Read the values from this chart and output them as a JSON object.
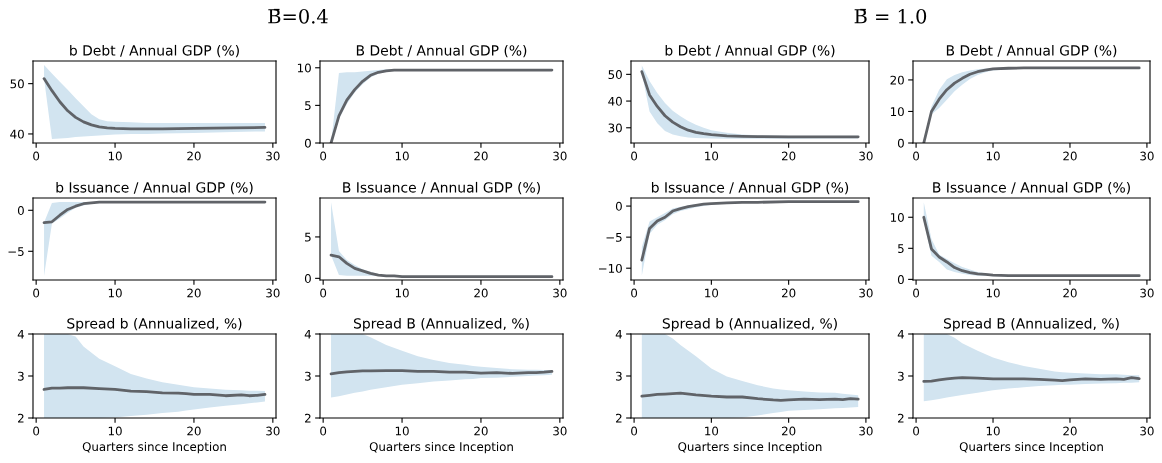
{
  "chart_data": [
    {
      "type": "line",
      "title": "b Debt / Annual GDP (%)",
      "annotations": [
        "B̄=0.4"
      ],
      "x": [
        1,
        2,
        3,
        4,
        5,
        6,
        7,
        8,
        9,
        10,
        12,
        14,
        16,
        20,
        25,
        29
      ],
      "xlim": [
        -0.4,
        30.4
      ],
      "xticks": [
        0,
        10,
        20,
        30
      ],
      "ylim": [
        38.2,
        54.5
      ],
      "yticks": [
        40,
        50
      ],
      "series": [
        {
          "color": "#606368",
          "values": [
            51.0,
            48.6,
            46.4,
            44.6,
            43.3,
            42.4,
            41.8,
            41.4,
            41.2,
            41.1,
            41.0,
            41.0,
            41.0,
            41.1,
            41.2,
            41.3
          ],
          "upper": [
            53.7,
            52.0,
            50.4,
            48.8,
            47.1,
            45.5,
            43.9,
            42.9,
            42.5,
            42.4,
            42.3,
            42.2,
            42.2,
            42.2,
            42.2,
            42.2
          ],
          "lower": [
            51.0,
            39.0,
            39.1,
            39.2,
            39.4,
            39.5,
            39.6,
            39.7,
            39.8,
            39.9,
            40.0,
            40.0,
            40.1,
            40.2,
            40.4,
            40.5
          ]
        }
      ]
    },
    {
      "type": "line",
      "title": "B Debt / Annual GDP (%)",
      "x": [
        1,
        2,
        3,
        4,
        5,
        6,
        7,
        8,
        9,
        10,
        12,
        14,
        16,
        20,
        25,
        29
      ],
      "xlim": [
        -0.4,
        30.4
      ],
      "xticks": [
        0,
        10,
        20,
        30
      ],
      "ylim": [
        0,
        10.9
      ],
      "yticks": [
        0,
        5,
        10
      ],
      "series": [
        {
          "color": "#606368",
          "values": [
            0,
            3.6,
            5.7,
            7.1,
            8.2,
            9.0,
            9.4,
            9.6,
            9.7,
            9.7,
            9.7,
            9.7,
            9.7,
            9.7,
            9.7,
            9.7
          ],
          "upper": [
            0,
            9.3,
            9.4,
            9.4,
            9.5,
            9.6,
            9.7,
            9.8,
            9.8,
            9.8,
            9.8,
            9.8,
            9.8,
            9.8,
            9.8,
            9.8
          ],
          "lower": [
            0,
            3.2,
            5.2,
            6.7,
            7.8,
            8.7,
            9.2,
            9.5,
            9.6,
            9.6,
            9.6,
            9.6,
            9.6,
            9.6,
            9.6,
            9.6
          ]
        }
      ]
    },
    {
      "type": "line",
      "title": "b Debt / Annual GDP (%)",
      "annotations": [
        "B̄ = 1.0"
      ],
      "x": [
        1,
        2,
        3,
        4,
        5,
        6,
        7,
        8,
        9,
        10,
        12,
        14,
        16,
        20,
        25,
        29
      ],
      "xlim": [
        -0.4,
        30.4
      ],
      "xticks": [
        0,
        10,
        20,
        30
      ],
      "ylim": [
        24.3,
        55.0
      ],
      "yticks": [
        30,
        40,
        50
      ],
      "series": [
        {
          "color": "#606368",
          "values": [
            51.0,
            42.3,
            38.0,
            34.5,
            32.1,
            30.4,
            29.1,
            28.3,
            27.8,
            27.4,
            27.0,
            26.8,
            26.7,
            26.6,
            26.6,
            26.6
          ],
          "upper": [
            53.3,
            47.5,
            43.0,
            39.3,
            36.4,
            34.3,
            32.5,
            31.1,
            30.0,
            29.1,
            28.1,
            27.5,
            27.2,
            27.0,
            27.0,
            27.0
          ],
          "lower": [
            50.5,
            36.1,
            31.7,
            28.8,
            27.5,
            26.8,
            26.4,
            26.2,
            26.1,
            26.0,
            25.9,
            25.9,
            25.9,
            25.9,
            26.0,
            26.0
          ]
        }
      ]
    },
    {
      "type": "line",
      "title": "B Debt / Annual GDP (%)",
      "x": [
        1,
        2,
        3,
        4,
        5,
        6,
        7,
        8,
        9,
        10,
        12,
        14,
        16,
        20,
        25,
        29
      ],
      "xlim": [
        -0.4,
        30.4
      ],
      "xticks": [
        0,
        10,
        20,
        30
      ],
      "ylim": [
        0,
        26.0
      ],
      "yticks": [
        0,
        10,
        20
      ],
      "series": [
        {
          "color": "#606368",
          "values": [
            0,
            10.0,
            13.9,
            16.9,
            19.0,
            20.5,
            21.8,
            22.6,
            23.1,
            23.5,
            23.7,
            23.8,
            23.8,
            23.8,
            23.8,
            23.8
          ],
          "upper": [
            0,
            11.6,
            16.9,
            20.2,
            21.6,
            22.4,
            23.0,
            23.4,
            23.6,
            23.8,
            24.0,
            24.0,
            24.0,
            24.0,
            24.0,
            24.0
          ],
          "lower": [
            0,
            9.0,
            11.1,
            13.7,
            16.4,
            18.5,
            20.3,
            21.6,
            22.4,
            23.0,
            23.4,
            23.6,
            23.6,
            23.6,
            23.6,
            23.6
          ]
        }
      ]
    },
    {
      "type": "line",
      "title": "b Issuance / Annual GDP (%)",
      "x": [
        1,
        2,
        3,
        4,
        5,
        6,
        7,
        8,
        9,
        10,
        12,
        14,
        16,
        20,
        25,
        29
      ],
      "xlim": [
        -0.4,
        30.4
      ],
      "xticks": [
        0,
        10,
        20,
        30
      ],
      "ylim": [
        -8.5,
        1.5
      ],
      "yticks": [
        -5,
        0
      ],
      "series": [
        {
          "color": "#606368",
          "values": [
            -1.5,
            -1.4,
            -0.6,
            0.1,
            0.5,
            0.8,
            0.9,
            1.0,
            1.0,
            1.0,
            1.0,
            1.0,
            1.0,
            1.0,
            1.0,
            1.0
          ],
          "upper": [
            -1.5,
            0.9,
            1.0,
            1.0,
            1.0,
            1.0,
            1.0,
            1.0,
            1.0,
            1.0,
            1.0,
            1.0,
            1.0,
            1.0,
            1.0,
            1.0
          ],
          "lower": [
            -8.0,
            -1.6,
            -1.0,
            -0.3,
            0.3,
            0.6,
            0.8,
            0.9,
            0.9,
            0.9,
            0.9,
            0.9,
            0.9,
            0.9,
            0.9,
            0.9
          ]
        }
      ]
    },
    {
      "type": "line",
      "title": "B Issuance / Annual GDP (%)",
      "x": [
        1,
        2,
        3,
        4,
        5,
        6,
        7,
        8,
        9,
        10,
        12,
        14,
        16,
        20,
        25,
        29
      ],
      "xlim": [
        -0.4,
        30.4
      ],
      "xticks": [
        0,
        10,
        20,
        30
      ],
      "ylim": [
        -0.2,
        9.7
      ],
      "yticks": [
        0,
        5
      ],
      "series": [
        {
          "color": "#606368",
          "values": [
            2.8,
            2.6,
            1.8,
            1.2,
            0.9,
            0.6,
            0.4,
            0.3,
            0.3,
            0.2,
            0.2,
            0.2,
            0.2,
            0.2,
            0.2,
            0.2
          ],
          "upper": [
            9.2,
            3.3,
            2.2,
            1.6,
            1.1,
            0.8,
            0.5,
            0.4,
            0.3,
            0.3,
            0.3,
            0.3,
            0.3,
            0.3,
            0.3,
            0.3
          ],
          "lower": [
            2.8,
            0.4,
            0.3,
            0.3,
            0.3,
            0.3,
            0.3,
            0.2,
            0.2,
            0.2,
            0.2,
            0.2,
            0.2,
            0.2,
            0.2,
            0.2
          ]
        }
      ]
    },
    {
      "type": "line",
      "title": "b Issuance / Annual GDP (%)",
      "x": [
        1,
        2,
        3,
        4,
        5,
        6,
        7,
        8,
        9,
        10,
        12,
        14,
        16,
        20,
        25,
        29
      ],
      "xlim": [
        -0.4,
        30.4
      ],
      "xticks": [
        0,
        10,
        20,
        30
      ],
      "ylim": [
        -11.9,
        1.3
      ],
      "yticks": [
        -10,
        -5,
        0
      ],
      "series": [
        {
          "color": "#606368",
          "values": [
            -8.7,
            -3.6,
            -2.4,
            -1.8,
            -0.8,
            -0.4,
            -0.1,
            0.1,
            0.3,
            0.4,
            0.5,
            0.6,
            0.6,
            0.7,
            0.7,
            0.7
          ],
          "upper": [
            -6.6,
            -2.5,
            -1.8,
            -1.1,
            -0.4,
            -0.1,
            0.1,
            0.3,
            0.4,
            0.5,
            0.6,
            0.7,
            0.7,
            0.7,
            0.7,
            0.7
          ],
          "lower": [
            -11.2,
            -4.5,
            -3.0,
            -2.3,
            -1.3,
            -0.8,
            -0.5,
            -0.2,
            0.0,
            0.2,
            0.4,
            0.5,
            0.6,
            0.6,
            0.6,
            0.6
          ]
        }
      ]
    },
    {
      "type": "line",
      "title": "B Issuance / Annual GDP (%)",
      "x": [
        1,
        2,
        3,
        4,
        5,
        6,
        7,
        8,
        9,
        10,
        12,
        14,
        16,
        20,
        25,
        29
      ],
      "xlim": [
        -0.4,
        30.4
      ],
      "xticks": [
        0,
        10,
        20,
        30
      ],
      "ylim": [
        -0.1,
        13.1
      ],
      "yticks": [
        0,
        5,
        10
      ],
      "series": [
        {
          "color": "#606368",
          "values": [
            10.0,
            4.9,
            3.6,
            2.8,
            1.9,
            1.4,
            1.1,
            0.9,
            0.8,
            0.7,
            0.6,
            0.6,
            0.6,
            0.6,
            0.6,
            0.6
          ],
          "upper": [
            12.4,
            6.5,
            4.0,
            3.3,
            2.6,
            2.0,
            1.6,
            1.2,
            1.0,
            0.8,
            0.7,
            0.7,
            0.7,
            0.7,
            0.7,
            0.7
          ],
          "lower": [
            9.3,
            3.8,
            2.8,
            1.6,
            1.2,
            0.9,
            0.7,
            0.6,
            0.6,
            0.5,
            0.5,
            0.5,
            0.5,
            0.5,
            0.5,
            0.5
          ]
        }
      ]
    },
    {
      "type": "line",
      "title": "Spread b (Annualized, %)",
      "xlabel": "Quarters since Inception",
      "x": [
        1,
        2,
        3,
        4,
        5,
        6,
        8,
        10,
        12,
        14,
        16,
        18,
        19,
        20,
        22,
        24,
        26,
        27,
        28,
        29
      ],
      "xlim": [
        -0.4,
        30.4
      ],
      "xticks": [
        0,
        10,
        20,
        30
      ],
      "ylim": [
        2,
        4
      ],
      "yticks": [
        2,
        3,
        4
      ],
      "series": [
        {
          "color": "#606368",
          "values": [
            2.68,
            2.71,
            2.71,
            2.72,
            2.72,
            2.72,
            2.7,
            2.68,
            2.64,
            2.63,
            2.6,
            2.59,
            2.58,
            2.56,
            2.56,
            2.53,
            2.55,
            2.53,
            2.54,
            2.56
          ],
          "upper": [
            4,
            4,
            4,
            4,
            3.94,
            3.7,
            3.41,
            3.23,
            3.05,
            2.94,
            2.85,
            2.79,
            2.76,
            2.73,
            2.7,
            2.67,
            2.66,
            2.65,
            2.65,
            2.64
          ],
          "lower": [
            2,
            2,
            2,
            2,
            2,
            2,
            2,
            2.01,
            2.05,
            2.08,
            2.12,
            2.15,
            2.18,
            2.2,
            2.25,
            2.29,
            2.33,
            2.35,
            2.37,
            2.39
          ]
        }
      ]
    },
    {
      "type": "line",
      "title": "Spread B (Annualized, %)",
      "xlabel": "Quarters since Inception",
      "x": [
        1,
        2,
        3,
        4,
        5,
        6,
        8,
        10,
        12,
        14,
        16,
        18,
        19,
        20,
        22,
        24,
        26,
        27,
        28,
        29
      ],
      "xlim": [
        -0.4,
        30.4
      ],
      "xticks": [
        0,
        10,
        20,
        30
      ],
      "ylim": [
        2,
        4
      ],
      "yticks": [
        2,
        3,
        4
      ],
      "series": [
        {
          "color": "#606368",
          "values": [
            3.05,
            3.08,
            3.1,
            3.11,
            3.12,
            3.12,
            3.13,
            3.13,
            3.11,
            3.11,
            3.09,
            3.09,
            3.08,
            3.07,
            3.08,
            3.06,
            3.08,
            3.08,
            3.09,
            3.11
          ],
          "upper": [
            4,
            4,
            4,
            4,
            4,
            3.92,
            3.74,
            3.6,
            3.47,
            3.38,
            3.31,
            3.27,
            3.24,
            3.22,
            3.19,
            3.16,
            3.15,
            3.15,
            3.14,
            3.14
          ],
          "lower": [
            2.49,
            2.52,
            2.56,
            2.6,
            2.63,
            2.67,
            2.73,
            2.79,
            2.83,
            2.87,
            2.89,
            2.92,
            2.93,
            2.95,
            2.96,
            2.98,
            3.0,
            3.01,
            3.02,
            3.03
          ]
        }
      ]
    },
    {
      "type": "line",
      "title": "Spread b (Annualized, %)",
      "xlabel": "Quarters since Inception",
      "x": [
        1,
        2,
        3,
        4,
        5,
        6,
        8,
        10,
        12,
        14,
        16,
        18,
        19,
        20,
        22,
        24,
        26,
        27,
        28,
        29
      ],
      "xlim": [
        -0.4,
        30.4
      ],
      "xticks": [
        0,
        10,
        20,
        30
      ],
      "ylim": [
        2,
        4
      ],
      "yticks": [
        2,
        3,
        4
      ],
      "series": [
        {
          "color": "#606368",
          "values": [
            2.52,
            2.54,
            2.56,
            2.57,
            2.58,
            2.59,
            2.55,
            2.52,
            2.5,
            2.5,
            2.46,
            2.43,
            2.42,
            2.43,
            2.45,
            2.44,
            2.45,
            2.44,
            2.46,
            2.45
          ],
          "upper": [
            4,
            4,
            4,
            4,
            3.89,
            3.74,
            3.47,
            3.18,
            2.99,
            2.88,
            2.78,
            2.7,
            2.68,
            2.66,
            2.63,
            2.61,
            2.6,
            2.58,
            2.56,
            2.54
          ],
          "lower": [
            2,
            2,
            2,
            2,
            2,
            2,
            2,
            2,
            2,
            2.01,
            2.06,
            2.12,
            2.14,
            2.17,
            2.19,
            2.21,
            2.23,
            2.24,
            2.25,
            2.26
          ]
        }
      ]
    },
    {
      "type": "line",
      "title": "Spread B (Annualized, %)",
      "xlabel": "Quarters since Inception",
      "x": [
        1,
        2,
        3,
        4,
        5,
        6,
        8,
        10,
        12,
        14,
        16,
        18,
        19,
        20,
        22,
        24,
        26,
        27,
        28,
        29
      ],
      "xlim": [
        -0.4,
        30.4
      ],
      "xticks": [
        0,
        10,
        20,
        30
      ],
      "ylim": [
        2,
        4
      ],
      "yticks": [
        2,
        3,
        4
      ],
      "series": [
        {
          "color": "#606368",
          "values": [
            2.87,
            2.88,
            2.91,
            2.93,
            2.95,
            2.96,
            2.95,
            2.93,
            2.93,
            2.93,
            2.92,
            2.9,
            2.89,
            2.91,
            2.93,
            2.92,
            2.93,
            2.92,
            2.96,
            2.94
          ],
          "upper": [
            4,
            4,
            4,
            4,
            3.91,
            3.78,
            3.6,
            3.44,
            3.33,
            3.24,
            3.17,
            3.11,
            3.09,
            3.08,
            3.06,
            3.04,
            3.04,
            3.03,
            3.02,
            3.02
          ],
          "lower": [
            2.4,
            2.42,
            2.45,
            2.49,
            2.52,
            2.55,
            2.6,
            2.66,
            2.7,
            2.73,
            2.76,
            2.78,
            2.79,
            2.79,
            2.81,
            2.82,
            2.83,
            2.84,
            2.84,
            2.85
          ]
        }
      ]
    }
  ]
}
